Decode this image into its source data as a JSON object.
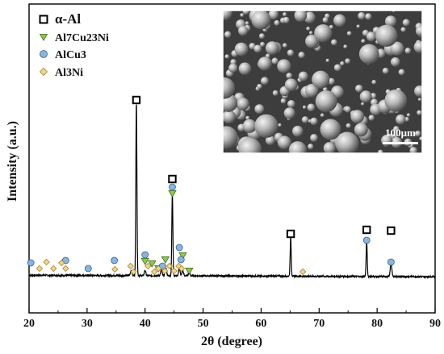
{
  "chart_data": {
    "type": "line",
    "xlabel": "2θ (degree)",
    "ylabel": "Intensity (a.u.)",
    "xlim": [
      20,
      90
    ],
    "x_ticks": [
      "20",
      "30",
      "40",
      "50",
      "60",
      "70",
      "80",
      "90"
    ],
    "y_ticks_labeled": false,
    "grid": false,
    "legend_position": "top-left",
    "series": [
      {
        "name": "",
        "color": "#000000",
        "baseline": 4,
        "peaks": [
          {
            "x": 38.5,
            "y": 100
          },
          {
            "x": 44.7,
            "y": 47
          },
          {
            "x": 65.1,
            "y": 22
          },
          {
            "x": 78.2,
            "y": 20
          },
          {
            "x": 82.4,
            "y": 8
          },
          {
            "x": 37.6,
            "y": 3
          },
          {
            "x": 40.0,
            "y": 3
          },
          {
            "x": 42.8,
            "y": 3
          },
          {
            "x": 43.6,
            "y": 4
          },
          {
            "x": 45.9,
            "y": 4
          },
          {
            "x": 46.5,
            "y": 3
          },
          {
            "x": 47.6,
            "y": 2
          }
        ]
      }
    ],
    "legend": [
      {
        "symbol": "square",
        "label": "α-Al",
        "color": "#ffffff",
        "stroke": "#000000"
      },
      {
        "symbol": "triangle-down",
        "label": "Al7Cu23Ni",
        "color": "#8fc84a",
        "stroke": "#3d6b1a"
      },
      {
        "symbol": "circle",
        "label": "AlCu3",
        "color": "#8ab4e0",
        "stroke": "#3a5e8c"
      },
      {
        "symbol": "diamond",
        "label": "Al3Ni",
        "color": "#f2d48a",
        "stroke": "#a08030"
      }
    ],
    "phase_markers": [
      {
        "phase": "square",
        "positions": [
          38.5,
          44.7,
          65.1,
          78.2,
          82.4
        ]
      },
      {
        "phase": "triangle-down",
        "positions": [
          40.0,
          41.2,
          42.3,
          43.5,
          44.7,
          46.5,
          47.6
        ]
      },
      {
        "phase": "circle",
        "positions": [
          20.3,
          26.3,
          30.2,
          34.7,
          40.0,
          43.0,
          44.7,
          45.9,
          46.2,
          78.2,
          82.4
        ]
      },
      {
        "phase": "diamond",
        "positions": [
          21.8,
          23.0,
          24.2,
          25.6,
          26.3,
          34.8,
          37.5,
          38.0,
          40.5,
          41.6,
          42.3,
          43.4,
          44.2,
          45.0,
          45.8,
          46.3,
          67.2
        ]
      }
    ],
    "inset": {
      "kind": "SEM micrograph of spherical powder particles",
      "scale_label": "100μm"
    }
  }
}
